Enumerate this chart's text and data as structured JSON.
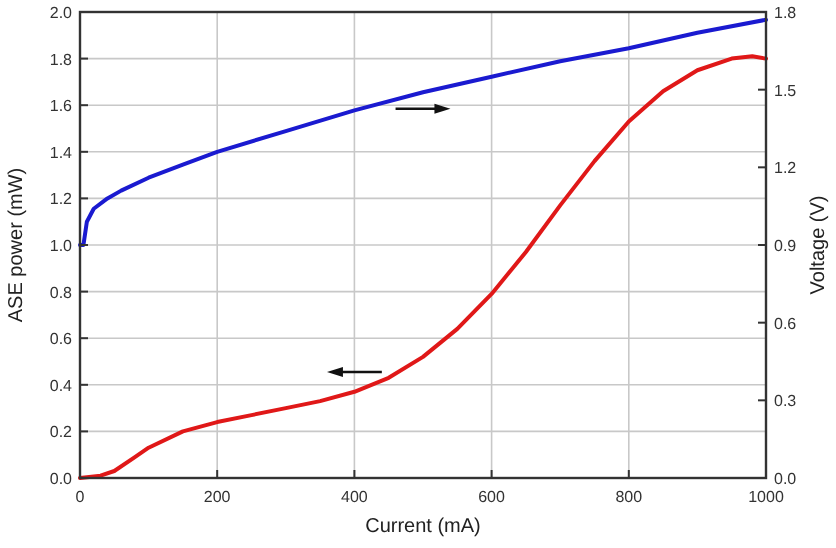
{
  "chart_data": {
    "type": "line",
    "xlabel": "Current (mA)",
    "ylabel": "ASE power (mW)",
    "y2label": "Voltage (V)",
    "xlim": [
      0,
      1000
    ],
    "xticks": [
      0,
      200,
      400,
      600,
      800,
      1000
    ],
    "ylim": [
      0,
      2.0
    ],
    "yticks": [
      {
        "value": 0,
        "label": "0.0"
      },
      0.2,
      0.4,
      0.6,
      0.8,
      {
        "value": 1,
        "label": "1.0"
      },
      1.2,
      1.4,
      1.6,
      1.8,
      {
        "value": 2,
        "label": "2.0"
      }
    ],
    "y2lim": [
      0,
      1.8
    ],
    "y2ticks": [
      {
        "value": 0,
        "label": "0.0"
      },
      0.3,
      0.6,
      0.9,
      1.2,
      1.5,
      1.8
    ],
    "grid": true,
    "line_style": "solid",
    "marker": "none",
    "series": [
      {
        "color": "#e01818",
        "x": [
          0,
          30,
          50,
          80,
          100,
          150,
          200,
          250,
          300,
          350,
          400,
          450,
          500,
          550,
          600,
          650,
          700,
          750,
          800,
          850,
          900,
          950,
          980,
          1000
        ],
        "values": [
          0,
          0.01,
          0.03,
          0.09,
          0.13,
          0.2,
          0.24,
          0.27,
          0.3,
          0.33,
          0.37,
          0.43,
          0.52,
          0.64,
          0.79,
          0.97,
          1.17,
          1.36,
          1.53,
          1.66,
          1.75,
          1.8,
          1.81,
          1.8
        ]
      },
      {
        "color": "#1a1ad0",
        "axis": "y2",
        "x": [
          0,
          5,
          10,
          20,
          40,
          60,
          100,
          150,
          200,
          300,
          400,
          500,
          600,
          700,
          800,
          900,
          1000
        ],
        "values": [
          0.9,
          0.9,
          0.99,
          1.04,
          1.08,
          1.11,
          1.16,
          1.21,
          1.26,
          1.34,
          1.42,
          1.49,
          1.55,
          1.61,
          1.66,
          1.72,
          1.77
        ]
      }
    ]
  }
}
